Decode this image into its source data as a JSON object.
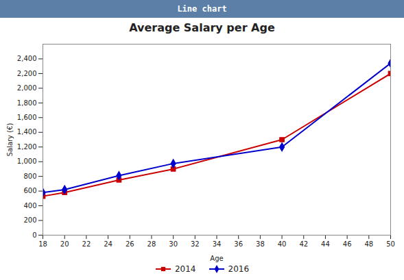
{
  "chart_data": {
    "type": "line",
    "title": "Average Salary per Age",
    "xlabel": "Age",
    "ylabel": "Salary (€)",
    "annotations": [
      "Line chart"
    ],
    "x": [
      18,
      20,
      25,
      30,
      40,
      50
    ],
    "series": [
      {
        "name": "2014",
        "color": "#cc0000",
        "marker": "square",
        "values": [
          530,
          580,
          750,
          900,
          1300,
          2200
        ]
      },
      {
        "name": "2016",
        "color": "#0000cc",
        "marker": "diamond",
        "values": [
          580,
          620,
          810,
          975,
          1200,
          2340
        ]
      }
    ],
    "xlim": [
      18,
      50
    ],
    "xticks": [
      18,
      20,
      22,
      24,
      26,
      28,
      30,
      32,
      34,
      36,
      38,
      40,
      42,
      44,
      46,
      48,
      50
    ],
    "ylim": [
      0,
      2600
    ],
    "yticks": [
      0,
      200,
      400,
      600,
      800,
      {
        "value": 1000,
        "label": "1,000"
      },
      {
        "value": 1200,
        "label": "1,200"
      },
      {
        "value": 1400,
        "label": "1,400"
      },
      {
        "value": 1600,
        "label": "1,600"
      },
      {
        "value": 1800,
        "label": "1,800"
      },
      {
        "value": 2000,
        "label": "2,000"
      },
      {
        "value": 2200,
        "label": "2,200"
      },
      {
        "value": 2400,
        "label": "2,400"
      }
    ],
    "grid": false,
    "legend": "bottom"
  }
}
